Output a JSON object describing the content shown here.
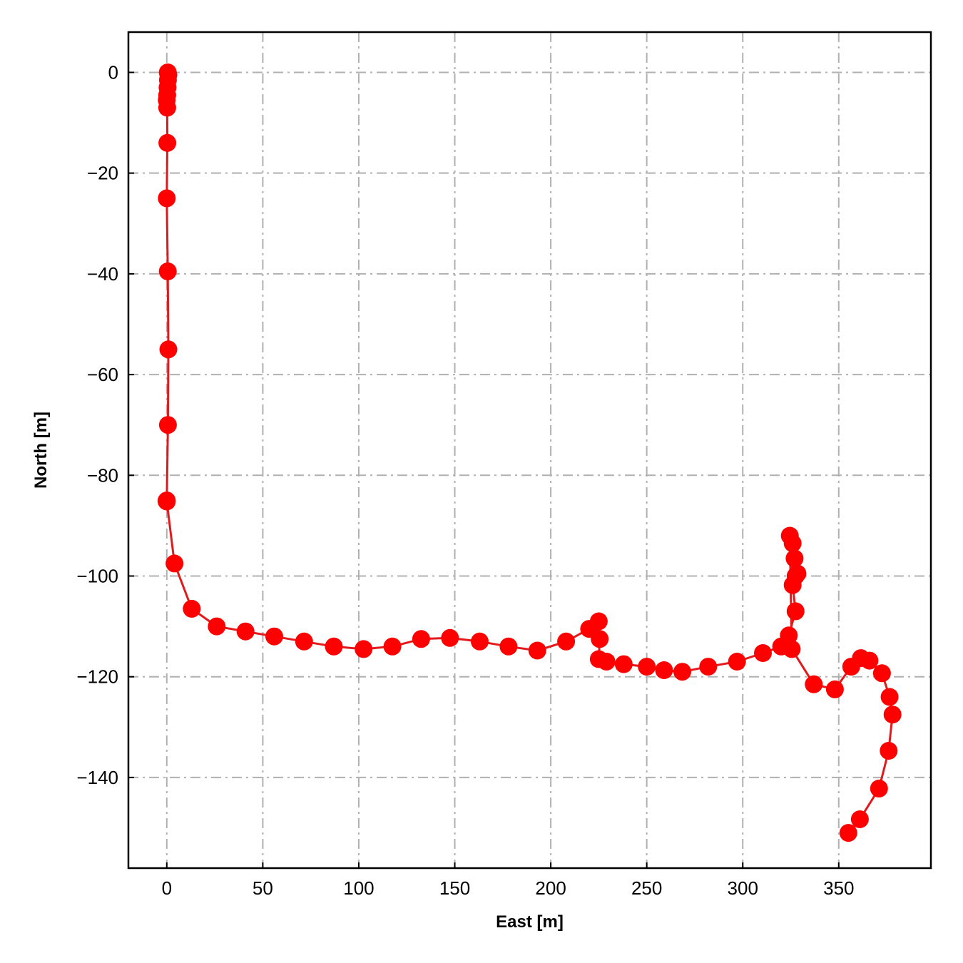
{
  "chart_data": {
    "type": "line",
    "title": "",
    "xlabel": "East [m]",
    "ylabel": "North [m]",
    "xlim": [
      -20,
      398
    ],
    "ylim": [
      -158,
      8
    ],
    "xticks": [
      0,
      50,
      100,
      150,
      200,
      250,
      300,
      350
    ],
    "yticks": [
      0,
      -20,
      -40,
      -60,
      -80,
      -100,
      -120,
      -140
    ],
    "xtick_labels": [
      "0",
      "50",
      "100",
      "150",
      "200",
      "250",
      "300",
      "350"
    ],
    "ytick_labels": [
      "0",
      "−20",
      "−40",
      "−60",
      "−80",
      "−100",
      "−120",
      "−140"
    ],
    "grid": true,
    "marker": "circle",
    "color": "#ff0000",
    "line_color": "#e31a1c",
    "series": [
      {
        "x": [
          0.5,
          0.8,
          0.6,
          0.4,
          0.2,
          0.0,
          0.2,
          0.3,
          0.0,
          0.5,
          0.8,
          0.6,
          0.0,
          -0.2,
          0.0,
          4.0,
          13.0,
          26.0,
          41.0,
          56.0,
          71.5,
          87.0,
          102.5,
          117.5,
          132.5,
          147.5,
          163.0,
          178.0,
          193.0,
          208.0,
          220.0,
          225.0,
          225.5,
          225.0,
          229.0,
          238.0,
          250.0,
          259.0,
          268.5,
          282.0,
          297.0,
          310.5,
          320.0,
          324.0,
          327.5,
          326.0,
          327.5,
          328.5,
          327.0,
          326.0,
          324.5,
          325.5,
          337.0,
          348.0,
          356.5,
          361.5,
          366.0,
          372.5,
          376.5,
          378.0,
          376.0,
          371.0,
          361.0,
          355.0
        ],
        "y": [
          0.0,
          -0.5,
          -1.5,
          -3.0,
          -4.5,
          -5.5,
          -7.0,
          -14.0,
          -25.0,
          -39.5,
          -55.0,
          -70.0,
          -85.0,
          -85.1,
          -85.2,
          -97.5,
          -106.5,
          -110.0,
          -111.0,
          -112.0,
          -113.0,
          -114.0,
          -114.5,
          -114.0,
          -112.5,
          -112.3,
          -113.0,
          -114.0,
          -114.8,
          -113.0,
          -110.5,
          -109.0,
          -112.5,
          -116.5,
          -117.0,
          -117.5,
          -118.0,
          -118.7,
          -119.0,
          -118.0,
          -117.0,
          -115.3,
          -114.0,
          -111.8,
          -107.0,
          -101.8,
          -100.0,
          -99.5,
          -96.5,
          -93.5,
          -92.0,
          -114.5,
          -121.5,
          -122.5,
          -118.0,
          -116.3,
          -116.8,
          -119.3,
          -124.0,
          -127.5,
          -134.7,
          -142.2,
          -148.3,
          -151.0
        ]
      }
    ]
  }
}
